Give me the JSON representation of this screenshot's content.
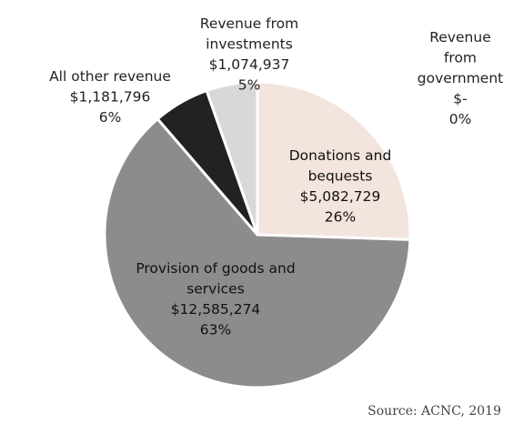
{
  "chart_data": {
    "type": "pie",
    "slices": [
      {
        "label": [
          "Donations and",
          "bequests"
        ],
        "value_text": "$5,082,729",
        "percent_text": "26%",
        "value": 5082729,
        "color": "#f4e4de"
      },
      {
        "label": [
          "Provision of goods and",
          "services"
        ],
        "value_text": "$12,585,274",
        "percent_text": "63%",
        "value": 12585274,
        "color": "#8c8c8c"
      },
      {
        "label": [
          "All other revenue"
        ],
        "value_text": "$1,181,796",
        "percent_text": "6%",
        "value": 1181796,
        "color": "#222222"
      },
      {
        "label": [
          "Revenue from",
          "investments"
        ],
        "value_text": "$1,074,937",
        "percent_text": "5%",
        "value": 1074937,
        "color": "#d8d8d8"
      },
      {
        "label": [
          "Revenue",
          "from",
          "government"
        ],
        "value_text": "$-",
        "percent_text": "0%",
        "value": 0,
        "color": "#ffffff"
      }
    ],
    "legend": "none",
    "source": "Source: ACNC, 2019"
  }
}
